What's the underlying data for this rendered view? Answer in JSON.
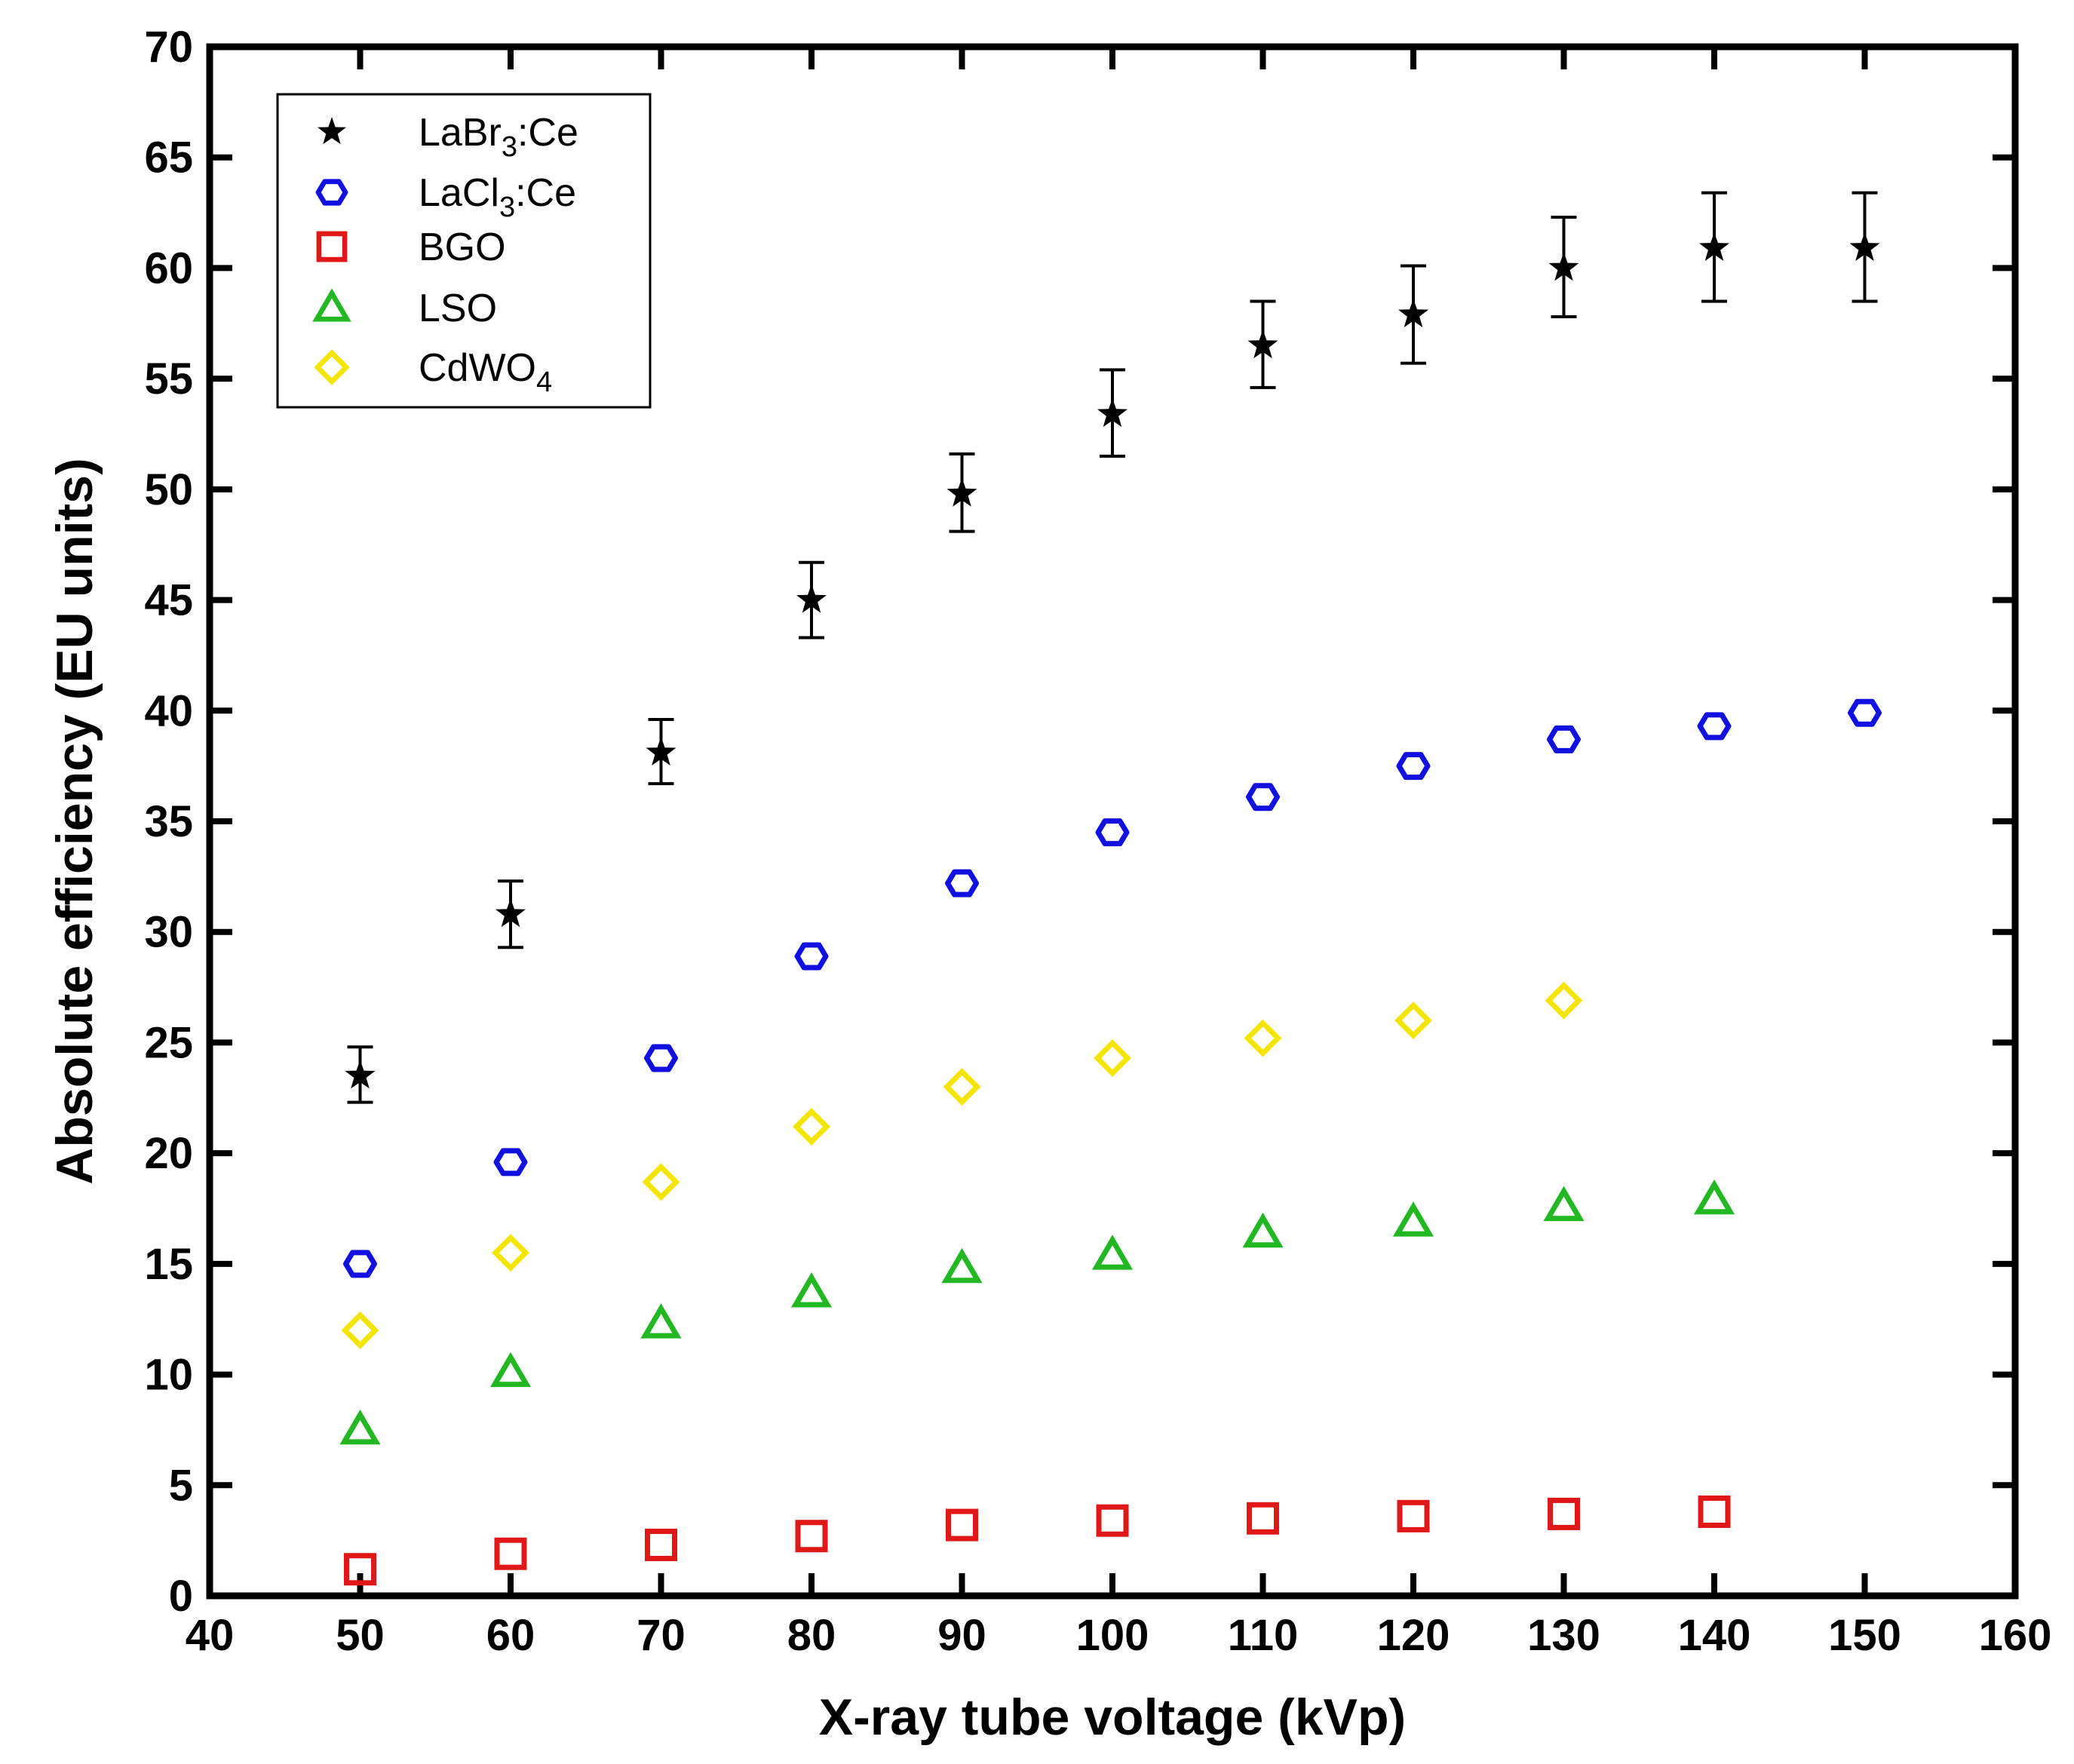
{
  "chart_data": {
    "type": "scatter",
    "title": "",
    "xlabel": "X-ray tube voltage (kVp)",
    "ylabel": "Absolute efficiency (EU units)",
    "xlim": [
      40,
      160
    ],
    "ylim": [
      0,
      70
    ],
    "xticks": [
      40,
      50,
      60,
      70,
      80,
      90,
      100,
      110,
      120,
      130,
      140,
      150,
      160
    ],
    "yticks": [
      0,
      5,
      10,
      15,
      20,
      25,
      30,
      35,
      40,
      45,
      50,
      55,
      60,
      65,
      70
    ],
    "grid": false,
    "legend_position": "top-left",
    "series": [
      {
        "name": "LaBr3:Ce",
        "legend": {
          "base": "LaBr",
          "sub": "3",
          "rest": ":Ce"
        },
        "marker": "star",
        "color": "#000000",
        "x": [
          50,
          60,
          70,
          80,
          90,
          100,
          110,
          120,
          130,
          140,
          150
        ],
        "y": [
          23.5,
          30.8,
          38.1,
          45.0,
          49.8,
          53.4,
          56.5,
          57.9,
          60.0,
          60.9,
          60.9
        ],
        "err_low": [
          22.3,
          29.3,
          36.7,
          43.3,
          48.1,
          51.5,
          54.6,
          55.7,
          57.8,
          58.5,
          58.5
        ],
        "err_high": [
          24.8,
          32.3,
          39.6,
          46.7,
          51.6,
          55.4,
          58.5,
          60.1,
          62.3,
          63.4,
          63.4
        ]
      },
      {
        "name": "LaCl3:Ce",
        "legend": {
          "base": "LaCl",
          "sub": "3",
          "rest": ":Ce"
        },
        "marker": "hexagon",
        "color": "#1010e0",
        "x": [
          50,
          60,
          70,
          80,
          90,
          100,
          110,
          120,
          130,
          140,
          150
        ],
        "y": [
          15.0,
          19.6,
          24.3,
          28.9,
          32.2,
          34.5,
          36.1,
          37.5,
          38.7,
          39.3,
          39.9
        ]
      },
      {
        "name": "BGO",
        "legend": {
          "base": "BGO",
          "sub": "",
          "rest": ""
        },
        "marker": "square",
        "color": "#e01818",
        "x": [
          50,
          60,
          70,
          80,
          90,
          100,
          110,
          120,
          130,
          140
        ],
        "y": [
          1.2,
          1.9,
          2.3,
          2.7,
          3.2,
          3.4,
          3.5,
          3.6,
          3.7,
          3.8
        ]
      },
      {
        "name": "LSO",
        "legend": {
          "base": "LSO",
          "sub": "",
          "rest": ""
        },
        "marker": "triangle",
        "color": "#22b822",
        "x": [
          50,
          60,
          70,
          80,
          90,
          100,
          110,
          120,
          130,
          140
        ],
        "y": [
          7.5,
          10.1,
          12.3,
          13.7,
          14.8,
          15.4,
          16.4,
          16.9,
          17.6,
          17.9
        ]
      },
      {
        "name": "CdWO4",
        "legend": {
          "base": "CdWO",
          "sub": "4",
          "rest": ""
        },
        "marker": "diamond",
        "color": "#f5e400",
        "x": [
          50,
          60,
          70,
          80,
          90,
          100,
          110,
          120,
          130
        ],
        "y": [
          12.0,
          15.5,
          18.7,
          21.2,
          23.0,
          24.3,
          25.2,
          26.0,
          26.9
        ]
      }
    ]
  }
}
